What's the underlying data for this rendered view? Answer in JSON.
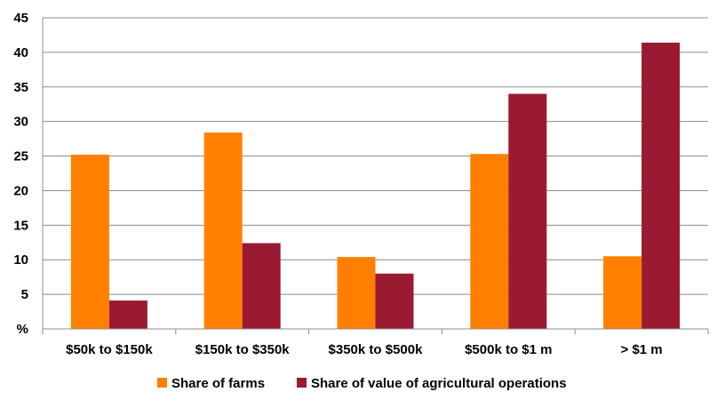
{
  "chart_data": {
    "type": "bar",
    "categories": [
      "$50k to $150k",
      "$150k to $350k",
      "$350k to $500k",
      "$500k to $1 m",
      "> $1 m"
    ],
    "series": [
      {
        "name": "Share of farms",
        "values": [
          25.2,
          28.4,
          10.4,
          25.3,
          10.5
        ],
        "color": "#FF8000"
      },
      {
        "name": "Share of value of agricultural operations",
        "values": [
          4.1,
          12.4,
          8.0,
          34.0,
          41.4
        ],
        "color": "#9A1A32"
      }
    ],
    "ylabel": "%",
    "ylim": [
      0,
      45
    ],
    "yticks": [
      "%",
      "5",
      "10",
      "15",
      "20",
      "25",
      "30",
      "35",
      "40",
      "45"
    ],
    "grid": true,
    "legend_position": "bottom"
  }
}
